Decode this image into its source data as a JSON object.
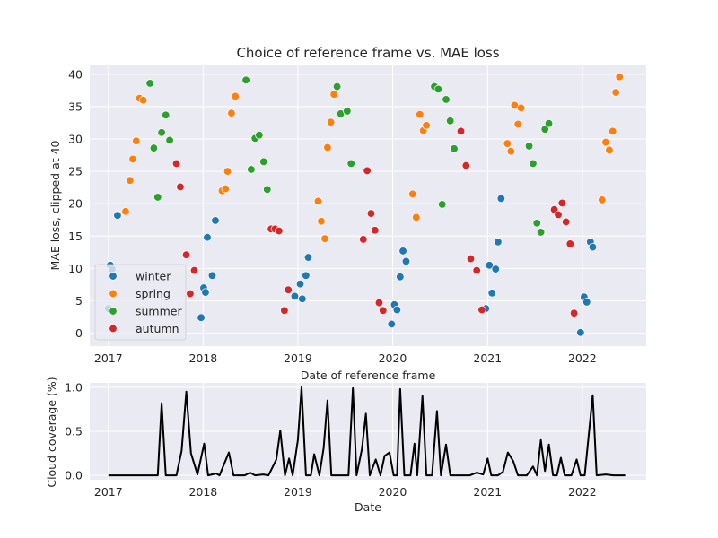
{
  "chart_data": [
    {
      "type": "scatter",
      "title": "Choice of reference frame vs. MAE loss",
      "xlabel": "Date of reference frame",
      "ylabel": "MAE loss, clipped at 40",
      "x_ticks": [
        "2017",
        "2018",
        "2019",
        "2020",
        "2021",
        "2022"
      ],
      "y_ticks": [
        0,
        5,
        10,
        15,
        20,
        25,
        30,
        35,
        40
      ],
      "xlim": [
        "2016-10-21",
        "2022-09-04"
      ],
      "ylim": [
        -2,
        41.5
      ],
      "grid": true,
      "legend": "lower-left",
      "series": [
        {
          "name": "winter",
          "color": "#1f77b4",
          "points": [
            [
              "2017-01-01",
              3.8
            ],
            [
              "2017-01-08",
              10.5
            ],
            [
              "2017-01-15",
              9.9
            ],
            [
              "2017-02-05",
              18.2
            ],
            [
              "2017-12-24",
              2.4
            ],
            [
              "2018-01-03",
              7.0
            ],
            [
              "2018-01-10",
              6.3
            ],
            [
              "2018-01-17",
              14.8
            ],
            [
              "2018-02-05",
              8.9
            ],
            [
              "2018-02-17",
              17.4
            ],
            [
              "2018-12-20",
              5.7
            ],
            [
              "2019-01-10",
              7.6
            ],
            [
              "2019-01-18",
              5.3
            ],
            [
              "2019-02-01",
              8.9
            ],
            [
              "2019-02-10",
              11.7
            ],
            [
              "2019-12-28",
              1.4
            ],
            [
              "2020-01-08",
              4.4
            ],
            [
              "2020-01-18",
              3.6
            ],
            [
              "2020-01-30",
              8.7
            ],
            [
              "2020-02-10",
              12.7
            ],
            [
              "2020-02-22",
              11.1
            ],
            [
              "2020-12-25",
              3.8
            ],
            [
              "2021-01-08",
              10.5
            ],
            [
              "2021-01-18",
              6.2
            ],
            [
              "2021-02-01",
              9.9
            ],
            [
              "2021-02-10",
              14.1
            ],
            [
              "2021-02-22",
              20.8
            ],
            [
              "2021-12-25",
              0.1
            ],
            [
              "2022-01-08",
              5.6
            ],
            [
              "2022-01-18",
              4.8
            ],
            [
              "2022-02-01",
              14.1
            ],
            [
              "2022-02-10",
              13.3
            ]
          ]
        },
        {
          "name": "spring",
          "color": "#ff7f0e",
          "points": [
            [
              "2017-03-08",
              18.8
            ],
            [
              "2017-03-25",
              23.6
            ],
            [
              "2017-04-05",
              26.9
            ],
            [
              "2017-04-18",
              29.7
            ],
            [
              "2017-05-01",
              36.3
            ],
            [
              "2017-05-15",
              36.0
            ],
            [
              "2018-03-15",
              22.0
            ],
            [
              "2018-03-28",
              22.3
            ],
            [
              "2018-04-05",
              25.0
            ],
            [
              "2018-04-20",
              34.0
            ],
            [
              "2018-05-05",
              36.6
            ],
            [
              "2019-03-20",
              20.4
            ],
            [
              "2019-04-01",
              17.3
            ],
            [
              "2019-04-15",
              14.6
            ],
            [
              "2019-04-25",
              28.7
            ],
            [
              "2019-05-08",
              32.6
            ],
            [
              "2019-05-20",
              36.9
            ],
            [
              "2020-03-18",
              21.5
            ],
            [
              "2020-04-01",
              17.9
            ],
            [
              "2020-04-15",
              33.8
            ],
            [
              "2020-04-28",
              31.3
            ],
            [
              "2020-05-10",
              32.1
            ],
            [
              "2021-03-18",
              29.3
            ],
            [
              "2021-04-01",
              28.1
            ],
            [
              "2021-04-15",
              35.2
            ],
            [
              "2021-04-28",
              32.3
            ],
            [
              "2021-05-10",
              34.8
            ],
            [
              "2022-03-18",
              20.6
            ],
            [
              "2022-04-01",
              29.5
            ],
            [
              "2022-04-15",
              28.3
            ],
            [
              "2022-04-28",
              31.2
            ],
            [
              "2022-05-10",
              37.2
            ],
            [
              "2022-05-24",
              39.6
            ]
          ]
        },
        {
          "name": "summer",
          "color": "#2ca02c",
          "points": [
            [
              "2017-06-10",
              38.6
            ],
            [
              "2017-06-25",
              28.6
            ],
            [
              "2017-07-10",
              21.0
            ],
            [
              "2017-07-25",
              31.0
            ],
            [
              "2017-08-10",
              33.7
            ],
            [
              "2017-08-25",
              29.8
            ],
            [
              "2018-06-15",
              39.1
            ],
            [
              "2018-07-05",
              25.3
            ],
            [
              "2018-07-20",
              30.1
            ],
            [
              "2018-08-05",
              30.6
            ],
            [
              "2018-08-22",
              26.5
            ],
            [
              "2018-09-05",
              22.2
            ],
            [
              "2019-06-01",
              38.1
            ],
            [
              "2019-06-15",
              33.9
            ],
            [
              "2019-07-10",
              34.3
            ],
            [
              "2019-07-25",
              26.2
            ],
            [
              "2020-06-10",
              38.1
            ],
            [
              "2020-06-25",
              37.7
            ],
            [
              "2020-07-10",
              19.9
            ],
            [
              "2020-07-25",
              36.1
            ],
            [
              "2020-08-10",
              32.8
            ],
            [
              "2020-08-25",
              28.5
            ],
            [
              "2021-06-10",
              28.9
            ],
            [
              "2021-06-25",
              26.2
            ],
            [
              "2021-07-10",
              17.0
            ],
            [
              "2021-07-25",
              15.6
            ],
            [
              "2021-08-10",
              31.5
            ],
            [
              "2021-08-25",
              32.4
            ]
          ]
        },
        {
          "name": "autumn",
          "color": "#d62728",
          "points": [
            [
              "2017-09-20",
              26.2
            ],
            [
              "2017-10-05",
              22.6
            ],
            [
              "2017-10-28",
              12.1
            ],
            [
              "2017-11-12",
              6.1
            ],
            [
              "2017-11-28",
              9.7
            ],
            [
              "2018-09-20",
              16.1
            ],
            [
              "2018-10-05",
              16.1
            ],
            [
              "2018-10-20",
              15.8
            ],
            [
              "2018-11-10",
              3.5
            ],
            [
              "2018-11-25",
              6.7
            ],
            [
              "2019-09-10",
              14.5
            ],
            [
              "2019-09-25",
              25.1
            ],
            [
              "2019-10-10",
              18.5
            ],
            [
              "2019-10-25",
              15.9
            ],
            [
              "2019-11-10",
              4.7
            ],
            [
              "2019-11-25",
              3.5
            ],
            [
              "2020-09-20",
              31.2
            ],
            [
              "2020-10-10",
              25.9
            ],
            [
              "2020-10-28",
              11.5
            ],
            [
              "2020-11-20",
              9.7
            ],
            [
              "2020-12-10",
              3.6
            ],
            [
              "2021-09-15",
              19.1
            ],
            [
              "2021-09-30",
              18.3
            ],
            [
              "2021-10-15",
              20.1
            ],
            [
              "2021-10-30",
              17.2
            ],
            [
              "2021-11-15",
              13.8
            ],
            [
              "2021-11-30",
              3.1
            ]
          ]
        }
      ]
    },
    {
      "type": "line",
      "xlabel": "Date",
      "ylabel": "Cloud coverage (%)",
      "x_ticks": [
        "2017",
        "2018",
        "2019",
        "2020",
        "2021",
        "2022"
      ],
      "y_ticks": [
        "0.0",
        "0.5",
        "1.0"
      ],
      "xlim": [
        "2016-10-21",
        "2022-09-04"
      ],
      "ylim": [
        -0.05,
        1.05
      ],
      "grid": true,
      "color": "#000000",
      "points": [
        [
          "2017-01-01",
          0.0
        ],
        [
          "2017-03-01",
          0.0
        ],
        [
          "2017-05-01",
          0.0
        ],
        [
          "2017-06-25",
          0.0
        ],
        [
          "2017-07-10",
          0.0
        ],
        [
          "2017-07-25",
          0.82
        ],
        [
          "2017-08-10",
          0.0
        ],
        [
          "2017-09-20",
          0.0
        ],
        [
          "2017-10-10",
          0.28
        ],
        [
          "2017-10-28",
          0.95
        ],
        [
          "2017-11-15",
          0.25
        ],
        [
          "2017-12-10",
          0.01
        ],
        [
          "2018-01-05",
          0.36
        ],
        [
          "2018-01-20",
          0.0
        ],
        [
          "2018-02-20",
          0.02
        ],
        [
          "2018-03-05",
          0.0
        ],
        [
          "2018-04-10",
          0.26
        ],
        [
          "2018-04-28",
          0.0
        ],
        [
          "2018-06-10",
          0.0
        ],
        [
          "2018-07-01",
          0.03
        ],
        [
          "2018-07-20",
          0.0
        ],
        [
          "2018-08-20",
          0.01
        ],
        [
          "2018-09-10",
          0.0
        ],
        [
          "2018-10-10",
          0.18
        ],
        [
          "2018-10-25",
          0.51
        ],
        [
          "2018-11-12",
          0.0
        ],
        [
          "2018-11-28",
          0.19
        ],
        [
          "2018-12-12",
          0.0
        ],
        [
          "2019-01-01",
          0.4
        ],
        [
          "2019-01-15",
          1.0
        ],
        [
          "2019-02-01",
          0.0
        ],
        [
          "2019-02-20",
          0.0
        ],
        [
          "2019-03-05",
          0.24
        ],
        [
          "2019-03-25",
          0.0
        ],
        [
          "2019-04-10",
          0.31
        ],
        [
          "2019-04-25",
          0.85
        ],
        [
          "2019-05-10",
          0.0
        ],
        [
          "2019-06-01",
          0.0
        ],
        [
          "2019-07-01",
          0.0
        ],
        [
          "2019-07-15",
          0.0
        ],
        [
          "2019-08-01",
          0.99
        ],
        [
          "2019-08-15",
          0.0
        ],
        [
          "2019-09-05",
          0.3
        ],
        [
          "2019-09-20",
          0.7
        ],
        [
          "2019-10-05",
          0.0
        ],
        [
          "2019-10-28",
          0.18
        ],
        [
          "2019-11-15",
          0.0
        ],
        [
          "2019-12-01",
          0.22
        ],
        [
          "2019-12-20",
          0.26
        ],
        [
          "2020-01-05",
          0.0
        ],
        [
          "2020-01-18",
          0.0
        ],
        [
          "2020-01-30",
          0.98
        ],
        [
          "2020-02-15",
          0.0
        ],
        [
          "2020-03-10",
          0.0
        ],
        [
          "2020-03-25",
          0.36
        ],
        [
          "2020-04-05",
          0.0
        ],
        [
          "2020-04-25",
          0.9
        ],
        [
          "2020-05-10",
          0.0
        ],
        [
          "2020-06-01",
          0.0
        ],
        [
          "2020-06-20",
          0.73
        ],
        [
          "2020-07-05",
          0.0
        ],
        [
          "2020-07-25",
          0.35
        ],
        [
          "2020-08-10",
          0.0
        ],
        [
          "2020-09-20",
          0.0
        ],
        [
          "2020-10-25",
          0.0
        ],
        [
          "2020-11-20",
          0.03
        ],
        [
          "2020-12-15",
          0.01
        ],
        [
          "2021-01-01",
          0.19
        ],
        [
          "2021-01-15",
          0.0
        ],
        [
          "2021-02-10",
          0.0
        ],
        [
          "2021-03-01",
          0.04
        ],
        [
          "2021-03-20",
          0.26
        ],
        [
          "2021-04-10",
          0.16
        ],
        [
          "2021-04-28",
          0.0
        ],
        [
          "2021-06-01",
          0.0
        ],
        [
          "2021-06-25",
          0.1
        ],
        [
          "2021-07-10",
          0.0
        ],
        [
          "2021-07-25",
          0.4
        ],
        [
          "2021-08-10",
          0.05
        ],
        [
          "2021-08-25",
          0.35
        ],
        [
          "2021-09-10",
          0.0
        ],
        [
          "2021-09-25",
          0.0
        ],
        [
          "2021-10-10",
          0.2
        ],
        [
          "2021-10-25",
          0.0
        ],
        [
          "2021-11-20",
          0.0
        ],
        [
          "2021-12-10",
          0.18
        ],
        [
          "2021-12-25",
          0.0
        ],
        [
          "2022-01-10",
          0.0
        ],
        [
          "2022-02-10",
          0.91
        ],
        [
          "2022-02-25",
          0.0
        ],
        [
          "2022-04-01",
          0.01
        ],
        [
          "2022-05-01",
          0.0
        ],
        [
          "2022-06-15",
          0.0
        ]
      ]
    }
  ]
}
